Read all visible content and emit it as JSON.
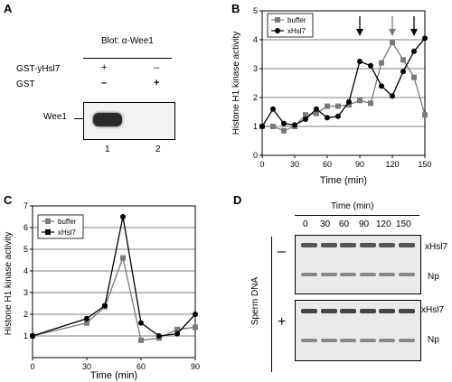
{
  "panels": {
    "A": {
      "letter": "A",
      "blot_title": "Blot: α-Wee1",
      "rows": [
        {
          "label": "GST-yHsl7",
          "lane1": "+",
          "lane2": "–"
        },
        {
          "label": "GST",
          "lane1": "–",
          "lane2": "+"
        }
      ],
      "band_label": "Wee1",
      "lane_numbers": [
        "1",
        "2"
      ]
    },
    "B": {
      "letter": "B",
      "ylabel": "Histone H1 kinase activity",
      "xlabel": "Time (min)",
      "legend": [
        "buffer",
        "xHsl7"
      ],
      "xticks": [
        "0",
        "30",
        "60",
        "90",
        "120",
        "150"
      ],
      "yticks": [
        "0",
        "1",
        "2",
        "3",
        "4",
        "5"
      ]
    },
    "C": {
      "letter": "C",
      "ylabel": "Histone H1 kinase activity",
      "xlabel": "Time (min)",
      "legend": [
        "buffer",
        "xHsl7"
      ],
      "xticks": [
        "0",
        "30",
        "60",
        "90"
      ],
      "yticks": [
        "1",
        "2",
        "3",
        "4",
        "5",
        "6",
        "7"
      ]
    },
    "D": {
      "letter": "D",
      "time_label": "Time (min)",
      "time_values": [
        "0",
        "30",
        "60",
        "90",
        "120",
        "150"
      ],
      "side_label": "Sperm DNA",
      "top_sign": "–",
      "bottom_sign": "+",
      "band_labels": [
        "xHsl7",
        "Np",
        "xHsl7",
        "Np"
      ]
    }
  },
  "chart_data": [
    {
      "type": "line",
      "panel": "B",
      "xlabel": "Time (min)",
      "ylabel": "Histone H1 kinase activity",
      "xlim": [
        0,
        150
      ],
      "ylim": [
        0,
        5
      ],
      "grid": true,
      "legend_position": "top-left",
      "arrows_at": [
        90,
        120,
        140
      ],
      "series": [
        {
          "name": "buffer",
          "color": "#7a7a7a",
          "marker": "square",
          "x": [
            0,
            10,
            20,
            30,
            40,
            50,
            60,
            70,
            80,
            90,
            100,
            110,
            120,
            130,
            140,
            150
          ],
          "y": [
            1.0,
            1.0,
            0.85,
            1.0,
            1.4,
            1.45,
            1.7,
            1.7,
            1.75,
            1.9,
            1.8,
            3.2,
            3.9,
            3.3,
            2.7,
            1.4
          ]
        },
        {
          "name": "xHsl7",
          "color": "#000000",
          "marker": "circle",
          "x": [
            0,
            10,
            20,
            30,
            40,
            50,
            60,
            70,
            80,
            90,
            100,
            110,
            120,
            130,
            140,
            150
          ],
          "y": [
            1.0,
            1.6,
            1.1,
            1.05,
            1.25,
            1.6,
            1.3,
            1.35,
            1.85,
            3.25,
            3.1,
            2.4,
            2.05,
            2.9,
            3.6,
            4.05
          ]
        }
      ]
    },
    {
      "type": "line",
      "panel": "C",
      "xlabel": "Time (min)",
      "ylabel": "Histone H1 kinase activity",
      "xlim": [
        0,
        90
      ],
      "ylim": [
        0,
        7
      ],
      "grid": true,
      "legend_position": "top-left",
      "series": [
        {
          "name": "buffer",
          "color": "#7a7a7a",
          "marker": "square",
          "x": [
            0,
            30,
            40,
            50,
            60,
            70,
            80,
            90
          ],
          "y": [
            1.0,
            1.6,
            2.35,
            4.6,
            0.8,
            0.9,
            1.3,
            1.4
          ]
        },
        {
          "name": "xHsl7",
          "color": "#000000",
          "marker": "circle",
          "x": [
            0,
            30,
            40,
            50,
            60,
            70,
            80,
            90
          ],
          "y": [
            1.0,
            1.8,
            2.4,
            6.5,
            1.6,
            1.0,
            1.1,
            2.0
          ]
        }
      ]
    }
  ]
}
